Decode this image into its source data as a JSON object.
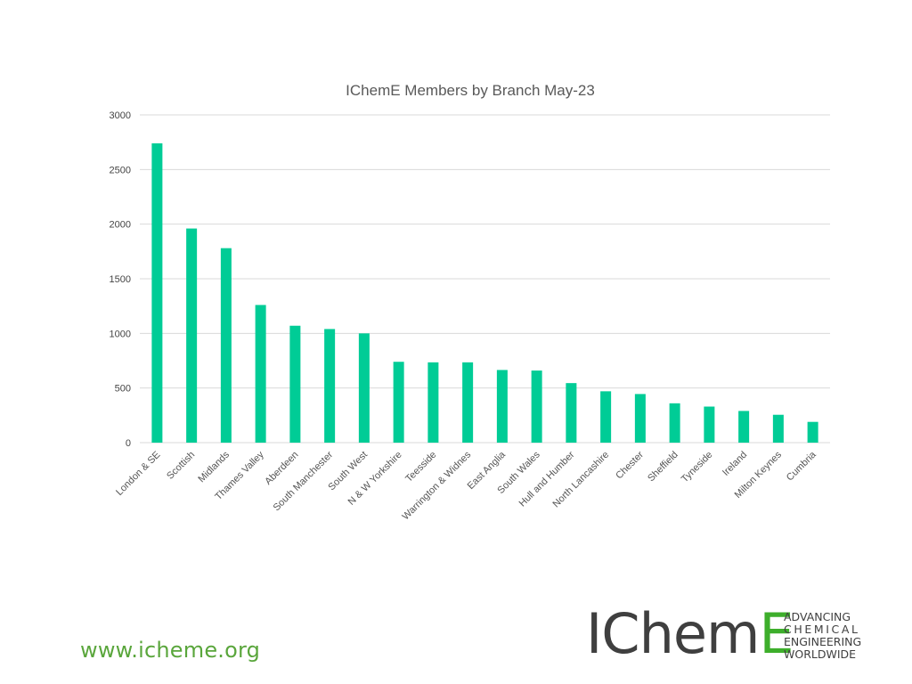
{
  "chart_data": {
    "type": "bar",
    "title": "IChemE Members by Branch May-23",
    "categories": [
      "London & SE",
      "Scottish",
      "Midlands",
      "Thames Valley",
      "Aberdeen",
      "South Manchester",
      "South West",
      "N & W Yorkshire",
      "Teesside",
      "Warrington & Widnes",
      "East Anglia",
      "South Wales",
      "Hull and Humber",
      "North Lancashire",
      "Chester",
      "Sheffield",
      "Tyneside",
      "Ireland",
      "Milton Keynes",
      "Cumbria"
    ],
    "values": [
      2740,
      1960,
      1780,
      1260,
      1070,
      1040,
      1000,
      740,
      735,
      735,
      665,
      660,
      545,
      470,
      445,
      360,
      330,
      290,
      255,
      190
    ],
    "ylim": [
      0,
      3000
    ],
    "yticks": [
      0,
      500,
      1000,
      1500,
      2000,
      2500,
      3000
    ],
    "grid": true,
    "legend": "none",
    "bar_color": "#00cc96"
  },
  "footer": {
    "website": "www.icheme.org",
    "logo_word_main": "IChem",
    "logo_word_accent": "E",
    "tagline": [
      "ADVANCING",
      "CHEMICAL",
      "ENGINEERING",
      "WORLDWIDE"
    ]
  },
  "colors": {
    "brand_green": "#3dae2b",
    "logo_grey": "#3f3f3f",
    "website_green": "#5aa63c"
  }
}
